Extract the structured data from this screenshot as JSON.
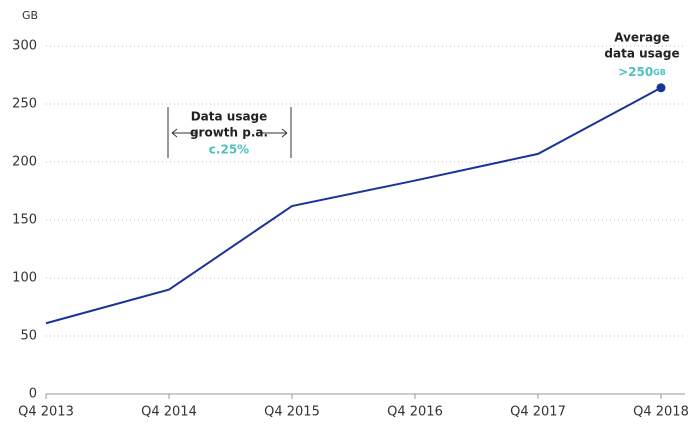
{
  "chart_data": {
    "type": "line",
    "y_unit": "GB",
    "categories": [
      "Q4 2013",
      "Q4 2014",
      "Q4 2015",
      "Q4 2016",
      "Q4 2017",
      "Q4 2018"
    ],
    "series": [
      {
        "name": "Average data usage",
        "color": "#1a3399",
        "values": [
          61,
          90,
          162,
          184,
          207,
          264
        ]
      }
    ],
    "ylim": [
      0,
      300
    ],
    "yticks": [
      0,
      50,
      100,
      150,
      200,
      250,
      300
    ],
    "grid": true,
    "annotations": [
      {
        "lines": [
          "Data usage",
          "growth p.a."
        ],
        "value": "c.25%"
      },
      {
        "lines": [
          "Average",
          "data usage"
        ],
        "value": ">250",
        "unit": "GB"
      }
    ]
  }
}
